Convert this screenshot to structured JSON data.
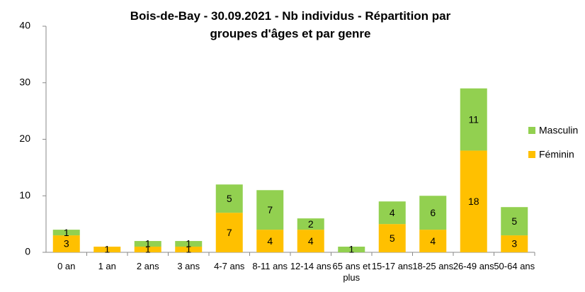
{
  "chart_data": {
    "type": "stacked_bar",
    "title": "Bois-de-Bay - 30.09.2021 - Nb individus - Répartition par groupes d'âges et par genre",
    "categories": [
      "0 an",
      "1 an",
      "2 ans",
      "3 ans",
      "4-7 ans",
      "8-11 ans",
      "12-14 ans",
      "65 ans et plus",
      "15-17 ans",
      "18-25 ans",
      "26-49 ans",
      "50-64 ans"
    ],
    "series": [
      {
        "name": "Féminin",
        "color": "#ffc000",
        "values": [
          3,
          1,
          1,
          1,
          7,
          4,
          4,
          0,
          5,
          4,
          18,
          3
        ]
      },
      {
        "name": "Masculin",
        "color": "#92d050",
        "values": [
          1,
          0,
          1,
          1,
          5,
          7,
          2,
          1,
          4,
          6,
          11,
          5
        ]
      }
    ],
    "ylim": [
      0,
      40
    ],
    "yticks": [
      0,
      10,
      20,
      30,
      40
    ],
    "grid": false,
    "legend": "right"
  }
}
